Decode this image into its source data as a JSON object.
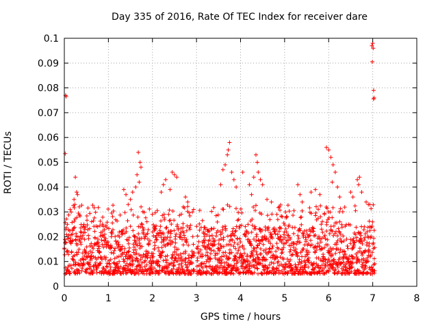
{
  "chart_data": {
    "type": "scatter",
    "title": "Day 335 of 2016, Rate Of TEC Index for receiver dare",
    "xlabel": "GPS time / hours",
    "ylabel": "ROTI / TECUs",
    "xlim": [
      0,
      8
    ],
    "ylim": [
      0,
      0.1
    ],
    "xticks": [
      0,
      1,
      2,
      3,
      4,
      5,
      6,
      7,
      8
    ],
    "yticks": [
      0,
      0.01,
      0.02,
      0.03,
      0.04,
      0.05,
      0.06,
      0.07,
      0.08,
      0.09,
      0.1
    ],
    "ytick_labels": [
      "0",
      "0.01",
      "0.02",
      "0.03",
      "0.04",
      "0.05",
      "0.06",
      "0.07",
      "0.08",
      "0.09",
      "0.1"
    ],
    "grid": true,
    "marker": "+",
    "marker_color": "#ff0000",
    "baseline": {
      "segments": [
        [
          0.0,
          2.95
        ],
        [
          3.0,
          7.05
        ]
      ],
      "min": 0.005,
      "typical_max": 0.025,
      "samples_per_hour": 290
    },
    "enhancements": [
      {
        "x": 0.03,
        "y": 0.077
      },
      {
        "x": 0.04,
        "y": 0.0765
      },
      {
        "x": 0.02,
        "y": 0.0535
      },
      {
        "x": 0.25,
        "y": 0.044
      },
      {
        "x": 0.28,
        "y": 0.038
      },
      {
        "x": 0.3,
        "y": 0.037
      },
      {
        "x": 0.22,
        "y": 0.035
      },
      {
        "x": 0.24,
        "y": 0.033
      },
      {
        "x": 1.35,
        "y": 0.039
      },
      {
        "x": 1.4,
        "y": 0.037
      },
      {
        "x": 1.5,
        "y": 0.035
      },
      {
        "x": 1.45,
        "y": 0.033
      },
      {
        "x": 1.55,
        "y": 0.038
      },
      {
        "x": 1.68,
        "y": 0.054
      },
      {
        "x": 1.72,
        "y": 0.05
      },
      {
        "x": 1.74,
        "y": 0.048
      },
      {
        "x": 1.65,
        "y": 0.045
      },
      {
        "x": 1.7,
        "y": 0.042
      },
      {
        "x": 1.62,
        "y": 0.04
      },
      {
        "x": 2.25,
        "y": 0.041
      },
      {
        "x": 2.3,
        "y": 0.043
      },
      {
        "x": 2.2,
        "y": 0.038
      },
      {
        "x": 2.45,
        "y": 0.046
      },
      {
        "x": 2.5,
        "y": 0.045
      },
      {
        "x": 2.55,
        "y": 0.044
      },
      {
        "x": 2.4,
        "y": 0.039
      },
      {
        "x": 2.75,
        "y": 0.036
      },
      {
        "x": 2.8,
        "y": 0.034
      },
      {
        "x": 2.7,
        "y": 0.032
      },
      {
        "x": 3.55,
        "y": 0.041
      },
      {
        "x": 3.6,
        "y": 0.047
      },
      {
        "x": 3.65,
        "y": 0.049
      },
      {
        "x": 3.7,
        "y": 0.053
      },
      {
        "x": 3.75,
        "y": 0.058
      },
      {
        "x": 3.72,
        "y": 0.055
      },
      {
        "x": 3.8,
        "y": 0.046
      },
      {
        "x": 3.85,
        "y": 0.043
      },
      {
        "x": 3.9,
        "y": 0.04
      },
      {
        "x": 4.05,
        "y": 0.046
      },
      {
        "x": 4.2,
        "y": 0.041
      },
      {
        "x": 4.3,
        "y": 0.044
      },
      {
        "x": 4.35,
        "y": 0.053
      },
      {
        "x": 4.38,
        "y": 0.05
      },
      {
        "x": 4.4,
        "y": 0.046
      },
      {
        "x": 4.45,
        "y": 0.043
      },
      {
        "x": 4.5,
        "y": 0.041
      },
      {
        "x": 4.25,
        "y": 0.037
      },
      {
        "x": 4.6,
        "y": 0.035
      },
      {
        "x": 4.7,
        "y": 0.034
      },
      {
        "x": 5.3,
        "y": 0.041
      },
      {
        "x": 5.35,
        "y": 0.037
      },
      {
        "x": 5.4,
        "y": 0.034
      },
      {
        "x": 5.6,
        "y": 0.038
      },
      {
        "x": 5.7,
        "y": 0.039
      },
      {
        "x": 5.8,
        "y": 0.037
      },
      {
        "x": 5.95,
        "y": 0.056
      },
      {
        "x": 6.0,
        "y": 0.055
      },
      {
        "x": 6.05,
        "y": 0.052
      },
      {
        "x": 6.1,
        "y": 0.049
      },
      {
        "x": 6.15,
        "y": 0.046
      },
      {
        "x": 6.08,
        "y": 0.042
      },
      {
        "x": 6.2,
        "y": 0.04
      },
      {
        "x": 6.25,
        "y": 0.036
      },
      {
        "x": 6.5,
        "y": 0.038
      },
      {
        "x": 6.55,
        "y": 0.036
      },
      {
        "x": 6.65,
        "y": 0.043
      },
      {
        "x": 6.7,
        "y": 0.044
      },
      {
        "x": 6.68,
        "y": 0.041
      },
      {
        "x": 6.75,
        "y": 0.038
      },
      {
        "x": 6.85,
        "y": 0.034
      },
      {
        "x": 6.9,
        "y": 0.033
      },
      {
        "x": 6.98,
        "y": 0.097
      },
      {
        "x": 7.0,
        "y": 0.098
      },
      {
        "x": 7.01,
        "y": 0.096
      },
      {
        "x": 6.99,
        "y": 0.0905
      },
      {
        "x": 7.02,
        "y": 0.079
      },
      {
        "x": 7.03,
        "y": 0.076
      },
      {
        "x": 7.02,
        "y": 0.0755
      }
    ]
  }
}
